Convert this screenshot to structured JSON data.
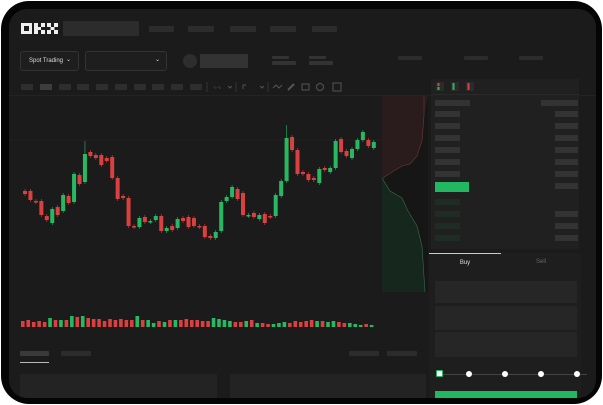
{
  "header": {
    "logo": "OKX"
  },
  "toolbar": {
    "market_select_label": "Spot Trading",
    "chevron": "⌄"
  },
  "order_form": {
    "tabs": [
      {
        "label": "Buy",
        "active": true
      },
      {
        "label": "Sell",
        "active": false
      }
    ],
    "leverage_slider_value": 0
  },
  "colors": {
    "up": "#27b862",
    "down": "#d9403f",
    "background": "#1b1b1b",
    "panel": "#202020"
  },
  "chart_data": {
    "type": "candlestick",
    "title": "",
    "xlabel": "",
    "ylabel": "",
    "grid": false,
    "candles": [
      [
        118,
        115
      ],
      [
        118,
        109
      ],
      [
        108,
        107
      ],
      [
        108,
        94
      ],
      [
        93,
        89
      ],
      [
        86,
        100
      ],
      [
        102,
        94
      ],
      [
        98,
        114
      ],
      [
        113,
        106
      ],
      [
        107,
        135
      ],
      [
        134,
        125
      ],
      [
        127,
        155
      ],
      [
        157,
        153
      ],
      [
        154,
        151
      ],
      [
        154,
        144
      ],
      [
        151,
        148
      ],
      [
        152,
        131
      ],
      [
        131,
        110
      ],
      [
        113,
        111
      ],
      [
        111,
        83
      ],
      [
        83,
        82
      ],
      [
        82,
        91
      ],
      [
        92,
        87
      ],
      [
        87,
        88
      ],
      [
        89,
        93
      ],
      [
        93,
        78
      ],
      [
        78,
        81
      ],
      [
        83,
        79
      ],
      [
        81,
        90
      ],
      [
        91,
        88
      ],
      [
        92,
        82
      ],
      [
        91,
        83
      ],
      [
        83,
        82
      ],
      [
        83,
        72
      ],
      [
        73,
        71
      ],
      [
        71,
        77
      ],
      [
        78,
        107
      ],
      [
        108,
        112
      ],
      [
        112,
        122
      ],
      [
        120,
        110
      ],
      [
        116,
        94
      ],
      [
        93,
        94
      ],
      [
        96,
        92
      ],
      [
        90,
        94
      ],
      [
        95,
        86
      ],
      [
        93,
        92
      ],
      [
        93,
        114
      ],
      [
        113,
        128
      ],
      [
        128,
        171
      ],
      [
        172,
        159
      ],
      [
        159,
        135
      ],
      [
        137,
        135
      ],
      [
        135,
        129
      ],
      [
        131,
        129
      ],
      [
        126,
        140
      ],
      [
        141,
        139
      ],
      [
        137,
        141
      ],
      [
        141,
        168
      ],
      [
        170,
        157
      ],
      [
        158,
        153
      ],
      [
        151,
        160
      ],
      [
        160,
        169
      ],
      [
        169,
        177
      ],
      [
        169,
        163
      ],
      [
        161,
        167
      ]
    ],
    "volumes": [
      6,
      7,
      5,
      6,
      5,
      9,
      7,
      7,
      7,
      11,
      10,
      11,
      9,
      8,
      8,
      6,
      8,
      7,
      8,
      7,
      7,
      11,
      7,
      7,
      4,
      6,
      5,
      7,
      7,
      7,
      8,
      7,
      7,
      6,
      6,
      9,
      8,
      7,
      6,
      5,
      5,
      6,
      7,
      4,
      4,
      3,
      3,
      4,
      5,
      4,
      6,
      5,
      6,
      7,
      6,
      6,
      5,
      6,
      5,
      4,
      4,
      3,
      2,
      3,
      2
    ],
    "ohlc_note_order": "open,close"
  }
}
